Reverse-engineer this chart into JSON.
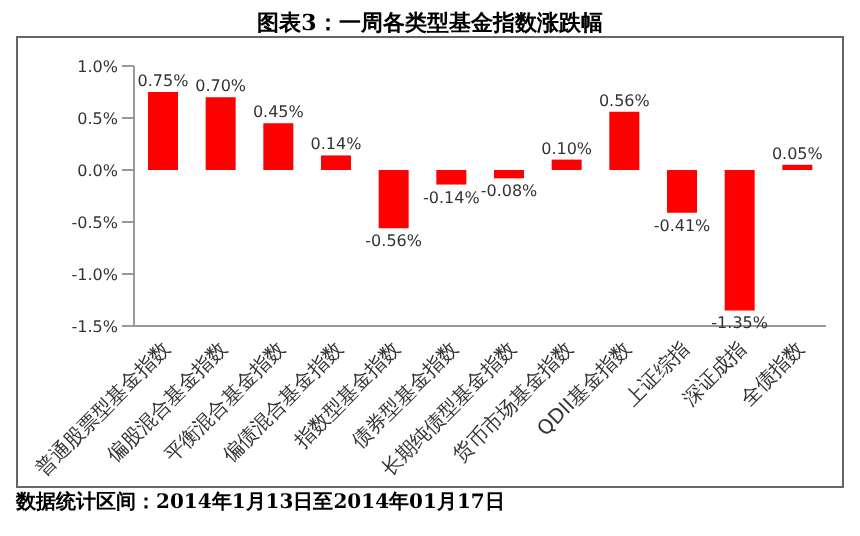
{
  "chart_data": {
    "type": "bar",
    "title": "图表3：一周各类型基金指数涨跌幅",
    "categories": [
      "普通股票型基金指数",
      "偏股混合基金指数",
      "平衡混合基金指数",
      "偏债混合基金指数",
      "指数型基金指数",
      "债券型基金指数",
      "长期纯债型基金指数",
      "货币市场基金指数",
      "QDII基金指数",
      "上证综指",
      "深证成指",
      "全债指数"
    ],
    "values": [
      0.75,
      0.7,
      0.45,
      0.14,
      -0.56,
      -0.14,
      -0.08,
      0.1,
      0.56,
      -0.41,
      -1.35,
      0.05
    ],
    "value_labels": [
      "0.75%",
      "0.70%",
      "0.45%",
      "0.14%",
      "-0.56%",
      "-0.14%",
      "-0.08%",
      "0.10%",
      "0.56%",
      "-0.41%",
      "-1.35%",
      "0.05%"
    ],
    "color": "#ff0000",
    "ylim": [
      -1.5,
      1.0
    ],
    "yticks": [
      {
        "value": -1.5,
        "label": "-1.5%"
      },
      {
        "value": -1.0,
        "label": "-1.0%"
      },
      {
        "value": -0.5,
        "label": "-0.5%"
      },
      {
        "value": 0,
        "label": "0.0%"
      },
      {
        "value": 0.5,
        "label": "0.5%"
      },
      {
        "value": 1.0,
        "label": "1.0%"
      }
    ],
    "grid": false,
    "legend": false,
    "annotations": [
      "数据统计区间：2014年1月13日至2014年01月17日"
    ]
  }
}
